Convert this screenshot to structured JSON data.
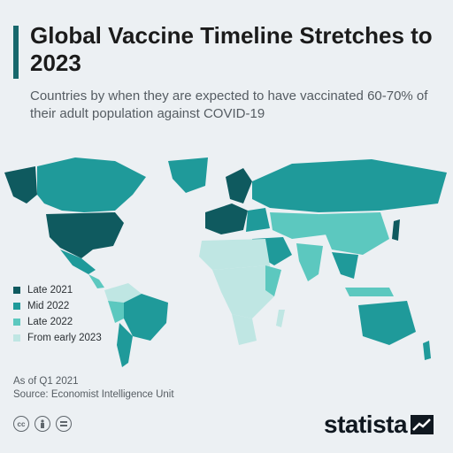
{
  "header": {
    "title": "Global Vaccine Timeline Stretches to 2023",
    "subtitle": "Countries by when they are expected to have vaccinated 60-70% of their adult population against COVID-19"
  },
  "legend": [
    {
      "label": "Late 2021",
      "color": "#0f5a5f"
    },
    {
      "label": "Mid 2022",
      "color": "#1f9a9a"
    },
    {
      "label": "Late 2022",
      "color": "#5cc8bf"
    },
    {
      "label": "From early 2023",
      "color": "#bfe6e3"
    }
  ],
  "footer": {
    "as_of": "As of Q1 2021",
    "source": "Source: Economist Intelligence Unit",
    "brand": "statista"
  },
  "colors": {
    "accent": "#17676c",
    "background": "#ecf0f3"
  }
}
